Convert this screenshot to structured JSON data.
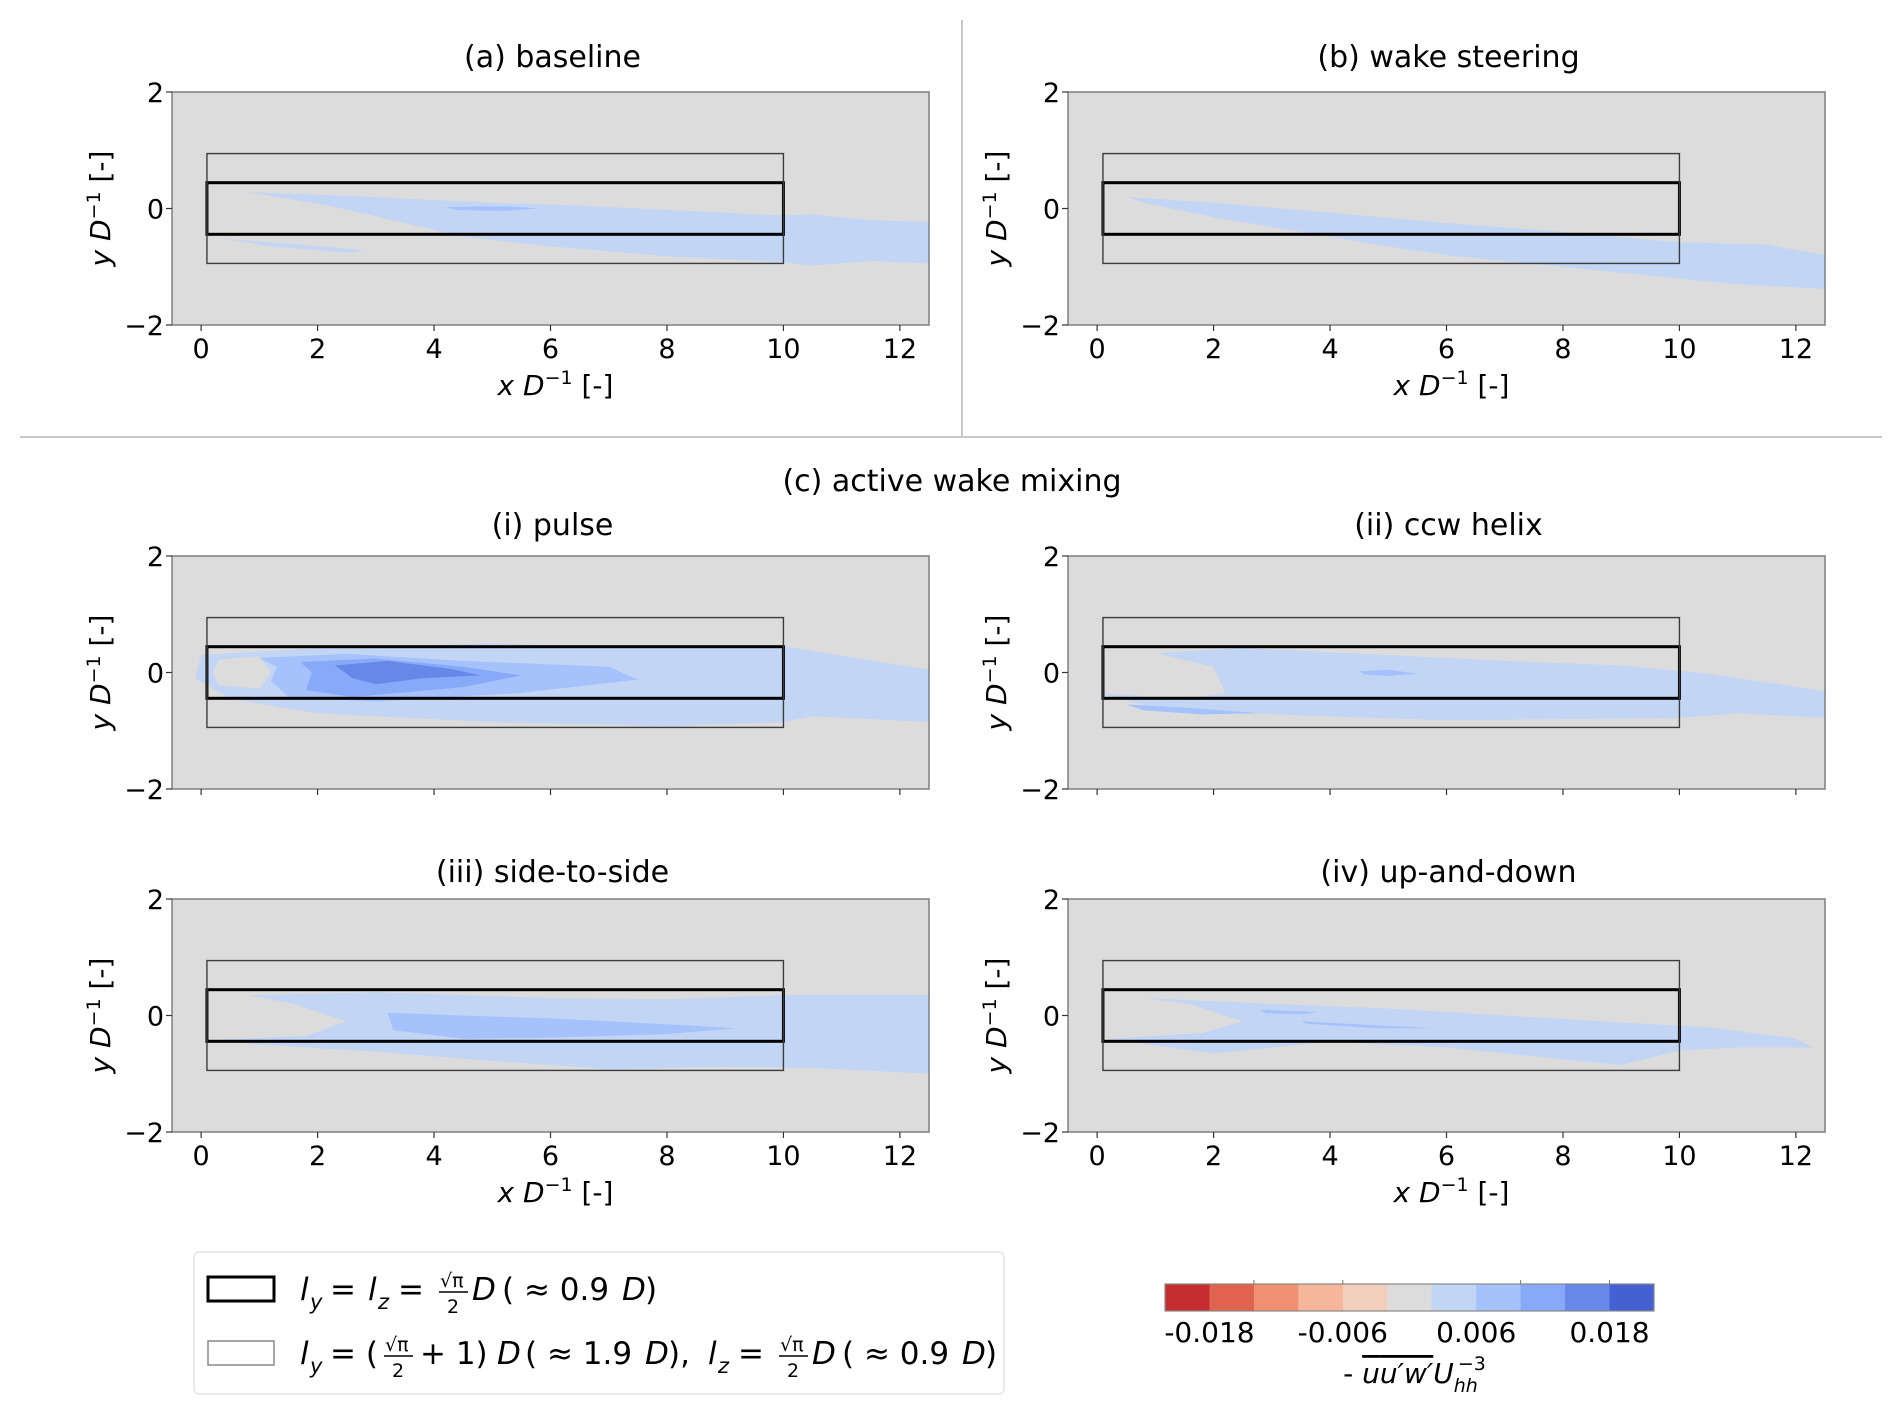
{
  "chart_data": {
    "type": "heatmap",
    "subtype": "filled-contour",
    "quantity_label": "-ū u'w' U_hh^-3",
    "x_label": "x D^-1 [-]",
    "y_label": "y D^-1 [-]",
    "xlim": [
      -0.5,
      12.5
    ],
    "ylim": [
      -2,
      2
    ],
    "x_ticks": [
      0,
      2,
      4,
      6,
      8,
      10,
      12
    ],
    "y_ticks": [
      -2,
      0,
      2
    ],
    "x_tick_labels": [
      "0",
      "2",
      "4",
      "6",
      "8",
      "10",
      "12"
    ],
    "y_tick_labels": [
      "−2",
      "0",
      "2"
    ],
    "section_title": "(c) active wake mixing",
    "colorbar": {
      "levels": 11,
      "colors": [
        "#c62d2f",
        "#e0634f",
        "#f09174",
        "#f6b69a",
        "#f2cfbd",
        "#dcdcdc",
        "#c2d5f4",
        "#a5c2fd",
        "#88a9f8",
        "#6688e9",
        "#4560d2"
      ],
      "tick_labels": [
        "-0.018",
        "-0.006",
        "0.006",
        "0.018"
      ],
      "tick_bin_boundaries": [
        1,
        3,
        8,
        10
      ],
      "label": "-ūu′w′U",
      "label_sub": "hh",
      "label_sup": "−3"
    },
    "boxes": [
      {
        "name": "inner",
        "x": [
          0.1,
          10
        ],
        "y": [
          -0.443,
          0.443
        ],
        "style": "thick",
        "legend": "l_y = l_z = √π/2 D ( ≈ 0.9D)"
      },
      {
        "name": "outer",
        "x": [
          0.1,
          10
        ],
        "y": [
          -0.943,
          0.943
        ],
        "style": "thin",
        "legend": "l_y = (√π/2 + 1)D ( ≈ 1.9D),  l_z = √π/2 D ( ≈ 0.9D)"
      }
    ],
    "panels": [
      {
        "id": "a",
        "title": "(a) baseline",
        "show_xticklabels": true,
        "regions": [
          {
            "level": 6,
            "points": [
              [
                0.8,
                0.28
              ],
              [
                2.5,
                0.22
              ],
              [
                4.5,
                0.12
              ],
              [
                6.5,
                0.05
              ],
              [
                8.5,
                -0.05
              ],
              [
                10,
                -0.12
              ],
              [
                10.5,
                -0.1
              ],
              [
                11.5,
                -0.2
              ],
              [
                12.5,
                -0.23
              ],
              [
                12.5,
                -0.95
              ],
              [
                11.5,
                -0.9
              ],
              [
                10.5,
                -0.98
              ],
              [
                10,
                -0.92
              ],
              [
                8,
                -0.82
              ],
              [
                6,
                -0.65
              ],
              [
                4.5,
                -0.48
              ],
              [
                3.5,
                -0.25
              ],
              [
                2.2,
                0.05
              ],
              [
                1.3,
                0.2
              ]
            ]
          },
          {
            "level": 6,
            "points": [
              [
                0.4,
                -0.52
              ],
              [
                1.5,
                -0.6
              ],
              [
                2.8,
                -0.72
              ],
              [
                2.6,
                -0.76
              ],
              [
                1.2,
                -0.65
              ]
            ]
          },
          {
            "level": 7,
            "points": [
              [
                4.2,
                0.02
              ],
              [
                4.8,
                0.04
              ],
              [
                5.4,
                0.03
              ],
              [
                5.8,
                0.0
              ],
              [
                5.2,
                -0.04
              ],
              [
                4.4,
                -0.03
              ]
            ]
          }
        ]
      },
      {
        "id": "b",
        "title": "(b) wake steering",
        "show_xticklabels": true,
        "regions": [
          {
            "level": 6,
            "points": [
              [
                0.5,
                0.2
              ],
              [
                2,
                0.1
              ],
              [
                4,
                -0.07
              ],
              [
                6,
                -0.25
              ],
              [
                8,
                -0.4
              ],
              [
                10,
                -0.58
              ],
              [
                11.5,
                -0.62
              ],
              [
                12.5,
                -0.8
              ],
              [
                12.5,
                -1.38
              ],
              [
                11,
                -1.3
              ],
              [
                9.5,
                -1.15
              ],
              [
                8,
                -1.0
              ],
              [
                6,
                -0.8
              ],
              [
                5,
                -0.65
              ],
              [
                3.5,
                -0.4
              ],
              [
                2,
                -0.15
              ],
              [
                0.8,
                0.1
              ]
            ]
          }
        ]
      },
      {
        "id": "i",
        "title": "(i) pulse",
        "show_xticklabels": false,
        "regions": [
          {
            "level": 6,
            "points": [
              [
                0,
                0.3
              ],
              [
                2,
                0.42
              ],
              [
                5,
                0.5
              ],
              [
                8,
                0.42
              ],
              [
                10,
                0.45
              ],
              [
                12.5,
                0.05
              ],
              [
                12.5,
                -0.85
              ],
              [
                10.5,
                -0.75
              ],
              [
                10,
                -0.85
              ],
              [
                8,
                -0.92
              ],
              [
                5,
                -0.85
              ],
              [
                2,
                -0.7
              ],
              [
                0.5,
                -0.45
              ],
              [
                -0.1,
                -0.1
              ]
            ]
          },
          {
            "level": 5,
            "points": [
              [
                0.3,
                0.22
              ],
              [
                1,
                0.28
              ],
              [
                1.2,
                0.0
              ],
              [
                1,
                -0.28
              ],
              [
                0.3,
                -0.22
              ],
              [
                0.2,
                0.0
              ]
            ]
          },
          {
            "level": 7,
            "points": [
              [
                1,
                0.25
              ],
              [
                2.5,
                0.32
              ],
              [
                4.5,
                0.2
              ],
              [
                7,
                0.1
              ],
              [
                7.5,
                -0.12
              ],
              [
                5.5,
                -0.35
              ],
              [
                3,
                -0.5
              ],
              [
                1.5,
                -0.42
              ],
              [
                1.2,
                -0.15
              ],
              [
                1.3,
                0.1
              ]
            ]
          },
          {
            "level": 8,
            "points": [
              [
                1.7,
                0.18
              ],
              [
                3,
                0.24
              ],
              [
                4.5,
                0.1
              ],
              [
                5.5,
                -0.05
              ],
              [
                4.5,
                -0.25
              ],
              [
                2.6,
                -0.42
              ],
              [
                1.8,
                -0.3
              ],
              [
                1.9,
                0.0
              ]
            ]
          },
          {
            "level": 9,
            "points": [
              [
                2.3,
                0.12
              ],
              [
                3.2,
                0.2
              ],
              [
                4.3,
                0.06
              ],
              [
                4.8,
                -0.05
              ],
              [
                3.8,
                -0.1
              ],
              [
                3.0,
                -0.2
              ],
              [
                2.6,
                -0.1
              ]
            ]
          }
        ]
      },
      {
        "id": "ii",
        "title": "(ii) ccw helix",
        "show_xticklabels": false,
        "regions": [
          {
            "level": 6,
            "points": [
              [
                1,
                0.33
              ],
              [
                2.5,
                0.42
              ],
              [
                5,
                0.3
              ],
              [
                7,
                0.2
              ],
              [
                9,
                0.12
              ],
              [
                10.5,
                -0.02
              ],
              [
                12.5,
                -0.32
              ],
              [
                12.5,
                -0.78
              ],
              [
                11,
                -0.7
              ],
              [
                10,
                -0.78
              ],
              [
                8,
                -0.8
              ],
              [
                6,
                -0.82
              ],
              [
                3,
                -0.72
              ],
              [
                1,
                -0.6
              ],
              [
                0,
                -0.35
              ],
              [
                1.5,
                -0.45
              ],
              [
                2.2,
                -0.35
              ],
              [
                2,
                0.1
              ]
            ]
          },
          {
            "level": 7,
            "points": [
              [
                4.5,
                0.02
              ],
              [
                5,
                0.05
              ],
              [
                5.5,
                -0.02
              ],
              [
                5,
                -0.06
              ],
              [
                4.6,
                -0.04
              ]
            ]
          },
          {
            "level": 7,
            "points": [
              [
                0.5,
                -0.55
              ],
              [
                1.5,
                -0.6
              ],
              [
                2.8,
                -0.7
              ],
              [
                1.8,
                -0.72
              ],
              [
                0.8,
                -0.65
              ]
            ]
          }
        ]
      },
      {
        "id": "iii",
        "title": "(iii) side-to-side",
        "show_xticklabels": true,
        "regions": [
          {
            "level": 6,
            "points": [
              [
                0.8,
                0.35
              ],
              [
                3,
                0.4
              ],
              [
                6,
                0.3
              ],
              [
                8,
                0.28
              ],
              [
                10,
                0.35
              ],
              [
                12.5,
                0.35
              ],
              [
                12.5,
                -1.0
              ],
              [
                10.5,
                -0.9
              ],
              [
                9,
                -0.88
              ],
              [
                7,
                -0.92
              ],
              [
                5,
                -0.78
              ],
              [
                3,
                -0.62
              ],
              [
                1,
                -0.5
              ],
              [
                0.2,
                -0.42
              ],
              [
                1.8,
                -0.35
              ],
              [
                2.5,
                -0.1
              ],
              [
                1.6,
                0.2
              ]
            ]
          },
          {
            "level": 7,
            "points": [
              [
                3.2,
                0.05
              ],
              [
                4.5,
                0.0
              ],
              [
                6,
                -0.05
              ],
              [
                8,
                -0.15
              ],
              [
                9.2,
                -0.22
              ],
              [
                8,
                -0.32
              ],
              [
                6,
                -0.38
              ],
              [
                4.5,
                -0.4
              ],
              [
                3.3,
                -0.25
              ]
            ]
          }
        ]
      },
      {
        "id": "iv",
        "title": "(iv) up-and-down",
        "show_xticklabels": true,
        "regions": [
          {
            "level": 6,
            "points": [
              [
                0.8,
                0.3
              ],
              [
                3,
                0.2
              ],
              [
                5,
                0.12
              ],
              [
                7,
                0.0
              ],
              [
                9,
                -0.12
              ],
              [
                10.5,
                -0.2
              ],
              [
                12,
                -0.4
              ],
              [
                12.3,
                -0.55
              ],
              [
                11,
                -0.55
              ],
              [
                10,
                -0.6
              ],
              [
                9,
                -0.85
              ],
              [
                8,
                -0.75
              ],
              [
                6,
                -0.55
              ],
              [
                4,
                -0.45
              ],
              [
                2,
                -0.65
              ],
              [
                0.2,
                -0.4
              ],
              [
                1.8,
                -0.3
              ],
              [
                2.5,
                -0.1
              ],
              [
                1.6,
                0.2
              ]
            ]
          },
          {
            "level": 7,
            "points": [
              [
                2.8,
                0.1
              ],
              [
                3.8,
                0.06
              ],
              [
                3.5,
                0.02
              ],
              [
                2.9,
                0.04
              ]
            ]
          },
          {
            "level": 7,
            "points": [
              [
                3.5,
                -0.1
              ],
              [
                5,
                -0.18
              ],
              [
                5.8,
                -0.22
              ],
              [
                4.8,
                -0.22
              ],
              [
                3.6,
                -0.14
              ]
            ]
          }
        ]
      }
    ],
    "legend": {
      "placement": "bottom-left",
      "items": [
        {
          "swatch": "thick-black-rectangle",
          "label": "l_y = l_z = √π/2 D ( ≈ 0.9D)"
        },
        {
          "swatch": "thin-gray-rectangle",
          "label": "l_y = (√π/2 + 1)D ( ≈ 1.9D),  l_z = √π/2 D ( ≈ 0.9D)"
        }
      ]
    }
  },
  "colors": {
    "axes_background": "#dcdcdc",
    "axes_frame": "#7f7f7f",
    "divider": "#c8c8c8",
    "box_thick": "#000000",
    "box_thin": "#3c3c3c"
  }
}
